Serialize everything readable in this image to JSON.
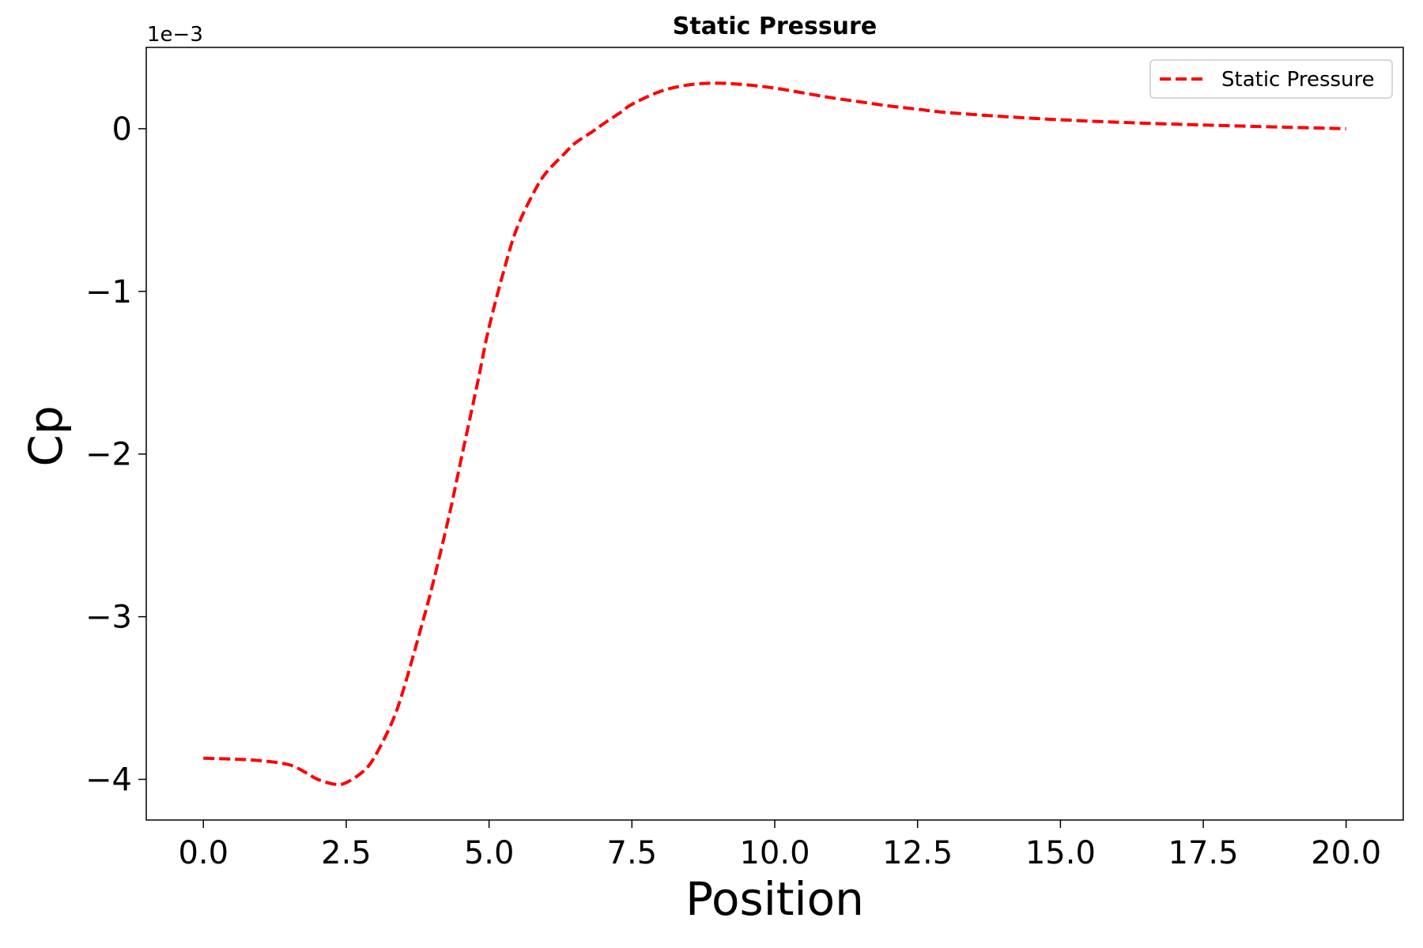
{
  "chart_data": {
    "type": "line",
    "title": "Static Pressure",
    "xlabel": "Position",
    "ylabel": "Cp",
    "y_offset_label": "1e−3",
    "xlim": [
      -1.0,
      21.0
    ],
    "ylim": [
      -4.25,
      0.5
    ],
    "x_ticks": [
      0.0,
      2.5,
      5.0,
      7.5,
      10.0,
      12.5,
      15.0,
      17.5,
      20.0
    ],
    "x_tick_labels": [
      "0.0",
      "2.5",
      "5.0",
      "7.5",
      "10.0",
      "12.5",
      "15.0",
      "17.5",
      "20.0"
    ],
    "y_ticks": [
      -4,
      -3,
      -2,
      -1,
      0
    ],
    "y_tick_labels": [
      "−4",
      "−3",
      "−2",
      "−1",
      "0"
    ],
    "grid": false,
    "legend_position": "top-right",
    "series": [
      {
        "name": "Static Pressure",
        "color": "#ff0000",
        "line_style": "dashed",
        "x": [
          0.0,
          0.5,
          1.0,
          1.5,
          1.8,
          2.0,
          2.3,
          2.5,
          2.8,
          3.0,
          3.3,
          3.5,
          3.8,
          4.0,
          4.3,
          4.5,
          4.8,
          5.0,
          5.3,
          5.5,
          5.8,
          6.0,
          6.3,
          6.5,
          6.8,
          7.0,
          7.3,
          7.5,
          8.0,
          8.5,
          9.0,
          9.5,
          10.0,
          10.5,
          11.0,
          11.5,
          12.0,
          12.5,
          13.0,
          14.0,
          15.0,
          16.0,
          17.0,
          18.0,
          19.0,
          20.0
        ],
        "y": [
          -3.87,
          -3.875,
          -3.885,
          -3.91,
          -3.96,
          -4.0,
          -4.03,
          -4.02,
          -3.95,
          -3.86,
          -3.65,
          -3.45,
          -3.08,
          -2.82,
          -2.38,
          -2.05,
          -1.56,
          -1.22,
          -0.82,
          -0.6,
          -0.38,
          -0.27,
          -0.16,
          -0.09,
          -0.02,
          0.03,
          0.1,
          0.15,
          0.23,
          0.27,
          0.28,
          0.27,
          0.25,
          0.22,
          0.19,
          0.165,
          0.14,
          0.12,
          0.1,
          0.075,
          0.055,
          0.04,
          0.028,
          0.018,
          0.009,
          0.0
        ]
      }
    ]
  }
}
